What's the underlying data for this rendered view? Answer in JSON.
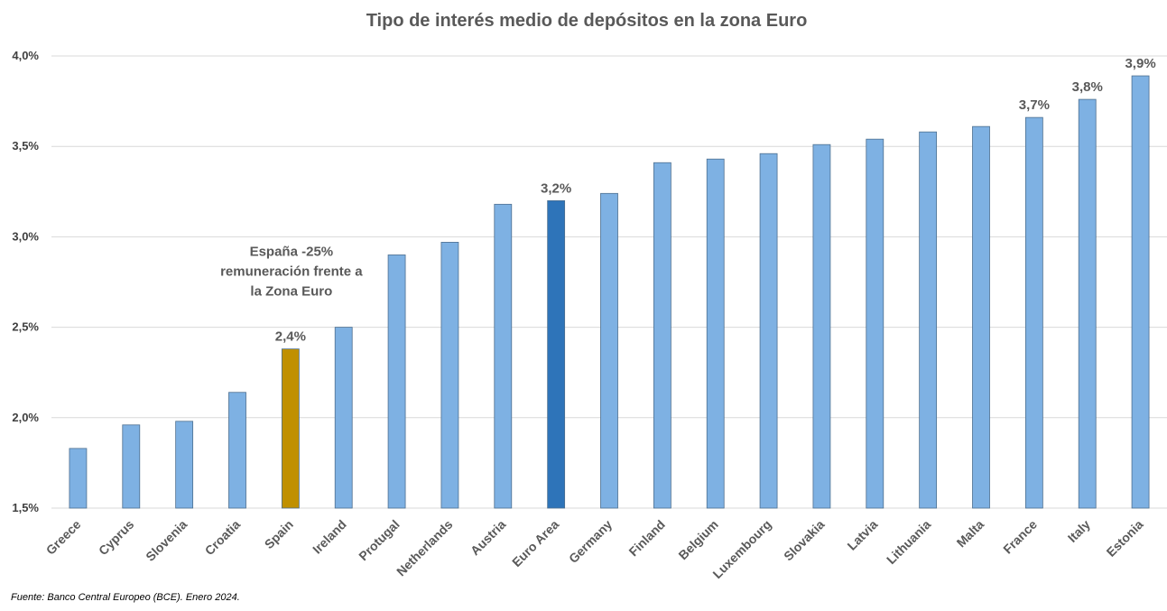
{
  "chart_data": {
    "type": "bar",
    "title": "Tipo de interés medio de depósitos en la zona Euro",
    "categories": [
      "Greece",
      "Cyprus",
      "Slovenia",
      "Croatia",
      "Spain",
      "Ireland",
      "Protugal",
      "Netherlands",
      "Austria",
      "Euro Area",
      "Germany",
      "Finland",
      "Belgium",
      "Luxembourg",
      "Slovakia",
      "Latvia",
      "Lithuania",
      "Malta",
      "France",
      "Italy",
      "Estonia"
    ],
    "values": [
      1.83,
      1.96,
      1.98,
      2.14,
      2.38,
      2.5,
      2.9,
      2.97,
      3.18,
      3.2,
      3.24,
      3.41,
      3.43,
      3.46,
      3.51,
      3.54,
      3.58,
      3.61,
      3.66,
      3.76,
      3.89
    ],
    "data_labels": {
      "Spain": "2,4%",
      "Euro Area": "3,2%",
      "France": "3,7%",
      "Italy": "3,8%",
      "Estonia": "3,9%"
    },
    "ylim": [
      1.5,
      4.0
    ],
    "yticks": [
      {
        "value": 1.5,
        "label": "1,5%"
      },
      {
        "value": 2.0,
        "label": "2,0%"
      },
      {
        "value": 2.5,
        "label": "2,5%"
      },
      {
        "value": 3.0,
        "label": "3,0%"
      },
      {
        "value": 3.5,
        "label": "3,5%"
      },
      {
        "value": 4.0,
        "label": "4,0%"
      }
    ],
    "grid": true,
    "colors": {
      "default": "#7EB1E3",
      "Spain": "#C09000",
      "Euro Area": "#2E74B9",
      "edge": "#4D6F8F",
      "grid": "#D9D9D9"
    },
    "annotation": {
      "category": "Spain",
      "lines": [
        "España -25%",
        "remuneración frente a",
        "la Zona Euro"
      ]
    }
  },
  "source": "Fuente: Banco Central Europeo (BCE). Enero 2024."
}
